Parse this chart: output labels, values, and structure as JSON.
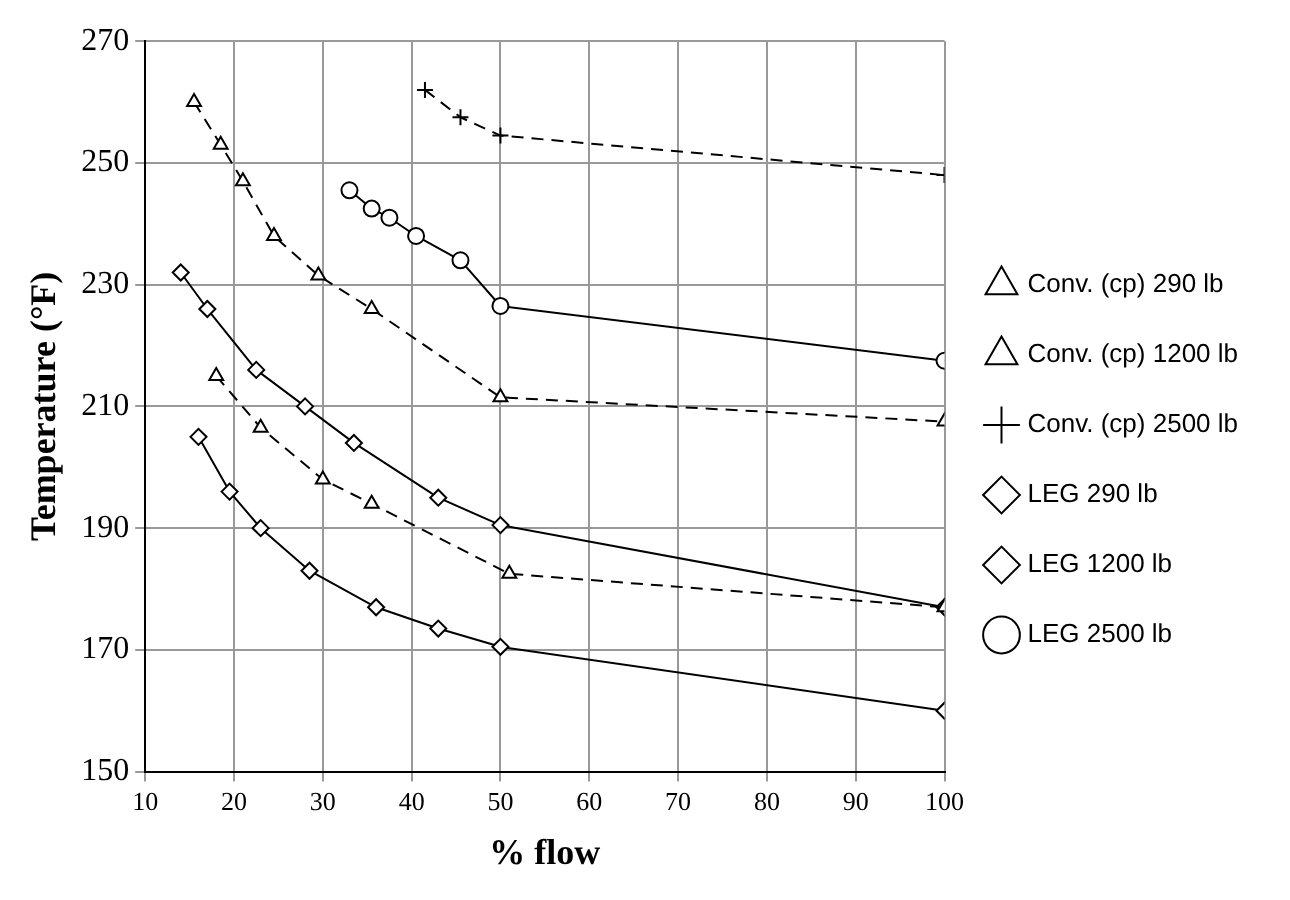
{
  "chart_data": {
    "type": "line",
    "xlabel": "% flow",
    "ylabel": "Temperature (°F)",
    "xlim": [
      10,
      100
    ],
    "xticks": [
      10,
      20,
      30,
      40,
      50,
      60,
      70,
      80,
      90,
      100
    ],
    "ylim": [
      150,
      270
    ],
    "yticks": [
      150,
      170,
      190,
      210,
      230,
      250,
      270
    ],
    "grid": true,
    "legend": "right",
    "series": [
      {
        "name": "Conv. (cp) 290 lb",
        "color": "#000000",
        "marker": "triangle",
        "line_style": "dashed",
        "x": [
          18,
          23,
          30,
          35.5,
          51,
          100
        ],
        "values": [
          215,
          206.5,
          198,
          194,
          182.5,
          177
        ]
      },
      {
        "name": "Conv. (cp) 1200 lb",
        "color": "#000000",
        "marker": "triangle",
        "line_style": "dashed",
        "x": [
          15.5,
          18.5,
          21,
          24.5,
          29.5,
          35.5,
          50,
          100
        ],
        "values": [
          260,
          253,
          247,
          238,
          231.5,
          226,
          211.5,
          207.5
        ]
      },
      {
        "name": "Conv. (cp) 2500 lb",
        "color": "#000000",
        "marker": "cross",
        "line_style": "dashed",
        "x": [
          41.5,
          45.5,
          50,
          100
        ],
        "values": [
          262,
          257.5,
          254.5,
          248
        ]
      },
      {
        "name": "LEG 290 lb",
        "color": "#000000",
        "marker": "diamond",
        "line_style": "solid",
        "x": [
          16,
          19.5,
          23,
          28.5,
          36,
          43,
          50,
          100
        ],
        "values": [
          205,
          196,
          190,
          183,
          177,
          173.5,
          170.5,
          160
        ]
      },
      {
        "name": "LEG 1200 lb",
        "color": "#000000",
        "marker": "diamond",
        "line_style": "solid",
        "x": [
          14,
          17,
          22.5,
          28,
          33.5,
          43,
          50,
          100
        ],
        "values": [
          232,
          226,
          216,
          210,
          204,
          195,
          190.5,
          177
        ]
      },
      {
        "name": "LEG 2500 lb",
        "color": "#000000",
        "marker": "circle",
        "line_style": "solid",
        "x": [
          33,
          35.5,
          37.5,
          40.5,
          45.5,
          50,
          100
        ],
        "values": [
          245.5,
          242.5,
          241,
          238,
          234,
          226.5,
          217.5
        ]
      }
    ]
  }
}
